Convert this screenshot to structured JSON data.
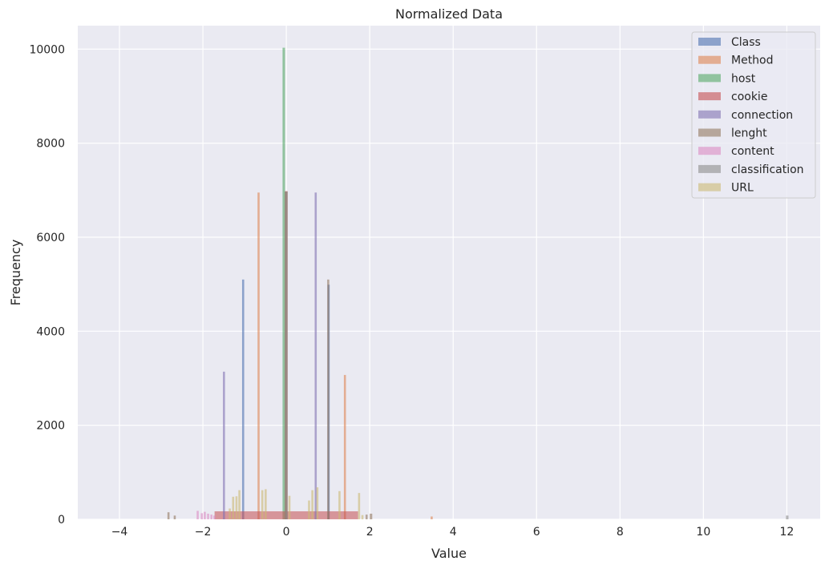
{
  "chart_data": {
    "type": "histogram",
    "title": "Normalized Data",
    "xlabel": "Value",
    "ylabel": "Frequency",
    "xlim": [
      -5,
      12.8
    ],
    "ylim": [
      0,
      10500
    ],
    "xticks": [
      -4,
      -2,
      0,
      2,
      4,
      6,
      8,
      10,
      12
    ],
    "yticks": [
      0,
      2000,
      4000,
      6000,
      8000,
      10000
    ],
    "grid": true,
    "legend_position": "top-right",
    "series": [
      {
        "name": "Class",
        "color": "#4c72b0",
        "bars": [
          {
            "x0": -1.06,
            "x1": -1.01,
            "y": 5100
          },
          {
            "x0": 0.99,
            "x1": 1.04,
            "y": 4990
          }
        ]
      },
      {
        "name": "Method",
        "color": "#dd8452",
        "bars": [
          {
            "x0": -0.69,
            "x1": -0.64,
            "y": 6950
          },
          {
            "x0": 1.38,
            "x1": 1.43,
            "y": 3070
          },
          {
            "x0": 3.46,
            "x1": 3.51,
            "y": 60
          }
        ]
      },
      {
        "name": "host",
        "color": "#55a868",
        "bars": [
          {
            "x0": -0.09,
            "x1": -0.03,
            "y": 10030
          }
        ]
      },
      {
        "name": "cookie",
        "color": "#c44e52",
        "bars": [
          {
            "x0": -0.03,
            "x1": 0.03,
            "y": 6980
          }
        ],
        "flat": {
          "x0": -1.72,
          "x1": 1.72,
          "y": 170
        }
      },
      {
        "name": "connection",
        "color": "#8172b3",
        "bars": [
          {
            "x0": -1.52,
            "x1": -1.47,
            "y": 3140
          },
          {
            "x0": 0.68,
            "x1": 0.73,
            "y": 6950
          }
        ]
      },
      {
        "name": "lenght",
        "color": "#937860",
        "bars": [
          {
            "x0": -2.85,
            "x1": -2.8,
            "y": 150
          },
          {
            "x0": -2.7,
            "x1": -2.65,
            "y": 80
          },
          {
            "x0": -0.04,
            "x1": 0.03,
            "y": 6970
          },
          {
            "x0": 0.98,
            "x1": 1.03,
            "y": 5100
          },
          {
            "x0": 1.9,
            "x1": 1.95,
            "y": 100
          },
          {
            "x0": 2.0,
            "x1": 2.06,
            "y": 120
          }
        ]
      },
      {
        "name": "content",
        "color": "#da8bc3",
        "bars": [
          {
            "x0": -2.15,
            "x1": -2.1,
            "y": 180
          },
          {
            "x0": -2.05,
            "x1": -2.0,
            "y": 130
          },
          {
            "x0": -1.98,
            "x1": -1.93,
            "y": 160
          },
          {
            "x0": -1.9,
            "x1": -1.85,
            "y": 120
          },
          {
            "x0": -1.82,
            "x1": -1.77,
            "y": 100
          },
          {
            "x0": -1.75,
            "x1": -1.7,
            "y": 80
          }
        ]
      },
      {
        "name": "classification",
        "color": "#8c8c8c",
        "bars": [
          {
            "x0": -0.03,
            "x1": 0.03,
            "y": 6970
          },
          {
            "x0": 11.98,
            "x1": 12.04,
            "y": 80
          }
        ]
      },
      {
        "name": "URL",
        "color": "#ccb974",
        "bars": [
          {
            "x0": -1.38,
            "x1": -1.33,
            "y": 230
          },
          {
            "x0": -1.3,
            "x1": -1.25,
            "y": 480
          },
          {
            "x0": -1.22,
            "x1": -1.17,
            "y": 490
          },
          {
            "x0": -1.15,
            "x1": -1.1,
            "y": 620
          },
          {
            "x0": -0.6,
            "x1": -0.55,
            "y": 620
          },
          {
            "x0": -0.52,
            "x1": -0.47,
            "y": 640
          },
          {
            "x0": 0.05,
            "x1": 0.1,
            "y": 500
          },
          {
            "x0": 0.52,
            "x1": 0.57,
            "y": 400
          },
          {
            "x0": 0.6,
            "x1": 0.65,
            "y": 620
          },
          {
            "x0": 0.72,
            "x1": 0.77,
            "y": 680
          },
          {
            "x0": 1.25,
            "x1": 1.3,
            "y": 600
          },
          {
            "x0": 1.72,
            "x1": 1.77,
            "y": 560
          },
          {
            "x0": 1.8,
            "x1": 1.85,
            "y": 90
          }
        ]
      }
    ]
  }
}
